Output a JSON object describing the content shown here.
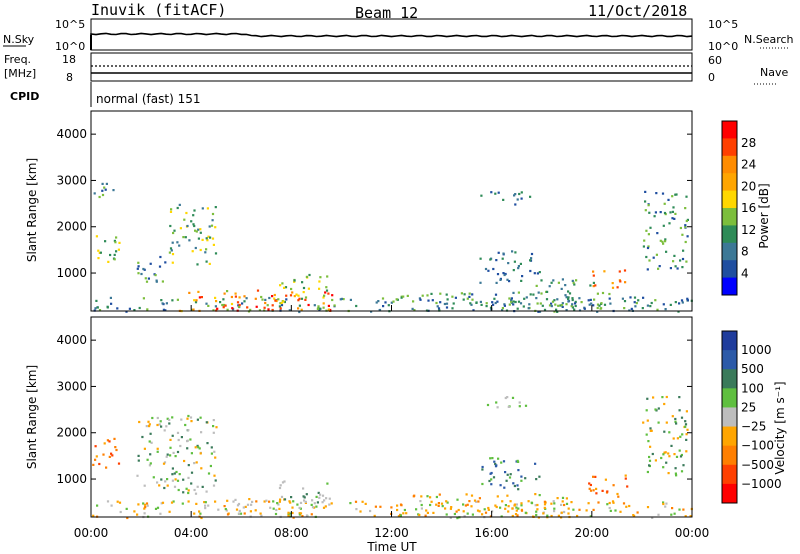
{
  "header": {
    "station": "Inuvik (fitACF)",
    "beam": "Beam 12",
    "date": "11/Oct/2018"
  },
  "top_panels": {
    "nsky_label": "N.Sky",
    "nsky_ticks": [
      "10^5",
      "10^0"
    ],
    "nsearch_label": "N.Search",
    "nsearch_ticks": [
      "10^5",
      "10^0"
    ],
    "freq_label": "Freq.",
    "freq_unit": "[MHz]",
    "freq_ticks": [
      "18",
      "8"
    ],
    "nave_label": "Nave",
    "nave_ticks": [
      "60",
      "0"
    ],
    "cpid_label": "CPID",
    "cpid_text": "normal (fast) 151"
  },
  "chart_data": [
    {
      "type": "heatmap",
      "name": "power-panel",
      "ylabel": "Slant Range [km]",
      "yticks": [
        "4000",
        "3000",
        "2000",
        "1000"
      ],
      "xticks": [
        "00:00",
        "04:00",
        "08:00",
        "12:00",
        "16:00",
        "20:00",
        "00:00"
      ],
      "ylim": [
        180,
        4500
      ],
      "colorbar": {
        "label": "Power [dB]",
        "ticks": [
          "28",
          "24",
          "20",
          "16",
          "12",
          "8",
          "4"
        ],
        "colors": [
          "#ff0000",
          "#ff4000",
          "#ff8c00",
          "#ffa500",
          "#ffd700",
          "#7cbe3c",
          "#2e8b57",
          "#3c7896",
          "#1f4ea0",
          "#0000ff"
        ]
      }
    },
    {
      "type": "heatmap",
      "name": "velocity-panel",
      "ylabel": "Slant Range [km]",
      "yticks": [
        "4000",
        "3000",
        "2000",
        "1000"
      ],
      "xticks": [
        "00:00",
        "04:00",
        "08:00",
        "12:00",
        "16:00",
        "20:00",
        "00:00"
      ],
      "ylim": [
        180,
        4500
      ],
      "colorbar": {
        "label": "Velocity [m s⁻¹]",
        "ticks": [
          "1000",
          "500",
          "100",
          "25",
          "−25",
          "−100",
          "−500",
          "−1000"
        ],
        "colors": [
          "#1f3c9c",
          "#2c5aa8",
          "#3a7a5a",
          "#5fbf3f",
          "#bdbdbd",
          "#ffa500",
          "#ff7f00",
          "#ff4000",
          "#ff0000"
        ]
      }
    }
  ],
  "xaxis": {
    "label": "Time UT"
  }
}
